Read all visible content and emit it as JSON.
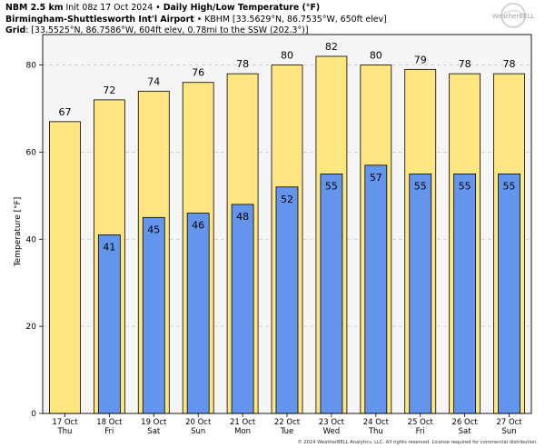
{
  "header": {
    "line1_bold": "NBM 2.5 km",
    "line1_init": " Init 08z 17 Oct 2024 • ",
    "line1_title": "Daily High/Low Temperature (°F)",
    "line2_bold": "Birmingham-Shuttlesworth Int'l Airport",
    "line2_rest": " • KBHM [33.5629°N, 86.7535°W, 650ft elev]",
    "line3_bold": "Grid",
    "line3_rest": ": [33.5525°N, 86.7586°W, 604ft elev, 0.78mi to the SSW (202.3°)]"
  },
  "logo": {
    "text": "WeatherBELL"
  },
  "copyright": "© 2024 WeatherBELL Analytics, LLC. All rights reserved. License required for commercial distribution.",
  "chart_data": {
    "type": "bar",
    "ylabel": "Temperature [°F]",
    "ylim": [
      0,
      87
    ],
    "yticks": [
      0,
      20,
      40,
      60,
      80
    ],
    "grid": true,
    "categories": [
      "17 Oct",
      "18 Oct",
      "19 Oct",
      "20 Oct",
      "21 Oct",
      "22 Oct",
      "23 Oct",
      "24 Oct",
      "25 Oct",
      "26 Oct",
      "27 Oct"
    ],
    "weekdays": [
      "Thu",
      "Fri",
      "Sat",
      "Sun",
      "Mon",
      "Tue",
      "Wed",
      "Thu",
      "Fri",
      "Sat",
      "Sun"
    ],
    "series": [
      {
        "key": "high",
        "color": "#ffe680",
        "values": [
          67,
          72,
          74,
          76,
          78,
          80,
          82,
          80,
          79,
          78,
          78
        ]
      },
      {
        "key": "low",
        "color": "#6495ed",
        "values": [
          null,
          41,
          45,
          46,
          48,
          52,
          55,
          57,
          55,
          55,
          55
        ]
      }
    ]
  }
}
